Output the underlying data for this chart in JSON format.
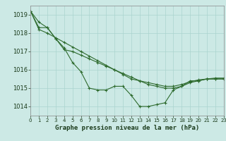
{
  "background_color": "#cce9e5",
  "plot_bg_color": "#cce9e5",
  "grid_color": "#aad4cf",
  "line_color": "#2d6a2d",
  "xlim": [
    0,
    23
  ],
  "ylim": [
    1013.5,
    1019.5
  ],
  "yticks": [
    1014,
    1015,
    1016,
    1017,
    1018,
    1019
  ],
  "xticks": [
    0,
    1,
    2,
    3,
    4,
    5,
    6,
    7,
    8,
    9,
    10,
    11,
    12,
    13,
    14,
    15,
    16,
    17,
    18,
    19,
    20,
    21,
    22,
    23
  ],
  "xlabel": "Graphe pression niveau de la mer (hPa)",
  "series": [
    [
      1019.2,
      1018.6,
      1018.3,
      1017.7,
      1017.2,
      1016.4,
      1015.9,
      1015.0,
      1014.9,
      1014.9,
      1015.1,
      1015.1,
      1014.6,
      1014.0,
      1014.0,
      1014.1,
      1014.2,
      1014.9,
      1015.1,
      1015.4,
      1015.4,
      1015.5,
      1015.5,
      1015.5
    ],
    [
      1019.2,
      1018.3,
      1018.3,
      1017.7,
      1017.1,
      1017.0,
      1016.8,
      1016.6,
      1016.4,
      1016.2,
      1016.0,
      1015.8,
      1015.6,
      1015.4,
      1015.2,
      1015.1,
      1015.0,
      1015.0,
      1015.1,
      1015.3,
      1015.4,
      1015.5,
      1015.5,
      1015.5
    ],
    [
      1019.2,
      1018.2,
      1018.0,
      1017.75,
      1017.5,
      1017.25,
      1017.0,
      1016.75,
      1016.5,
      1016.25,
      1016.0,
      1015.75,
      1015.5,
      1015.4,
      1015.3,
      1015.2,
      1015.1,
      1015.1,
      1015.2,
      1015.35,
      1015.45,
      1015.5,
      1015.55,
      1015.55
    ]
  ],
  "tick_fontsize": 6,
  "xlabel_fontsize": 6.5,
  "xlabel_color": "#1a3a1a",
  "tick_color": "#1a3a1a"
}
